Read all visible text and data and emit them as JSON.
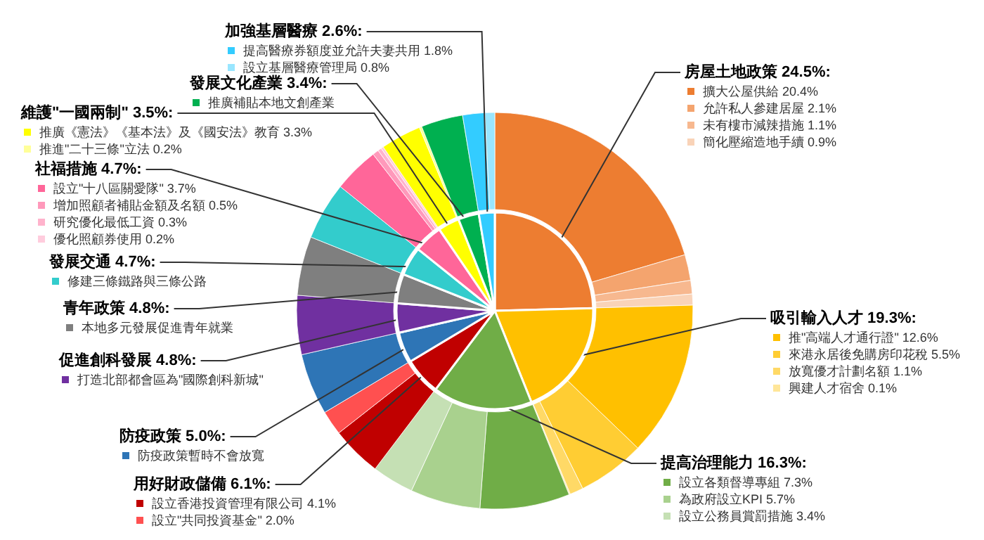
{
  "chart_data": [
    {
      "type": "pie",
      "categories": [
        "房屋土地政策",
        "吸引輸入人才",
        "提高治理能力",
        "用好財政儲備",
        "防疫政策",
        "促進創科發展",
        "青年政策",
        "發展交通",
        "社福措施",
        "維護\"一國兩制\"",
        "發展文化產業",
        "加強基層醫療"
      ],
      "values": [
        24.5,
        19.3,
        16.3,
        6.1,
        5.0,
        4.8,
        4.8,
        4.7,
        4.7,
        3.5,
        3.4,
        2.6
      ],
      "colors": [
        "#ed7d31",
        "#ffc000",
        "#70ad47",
        "#c00000",
        "#2e75b6",
        "#7030a0",
        "#7f7f7f",
        "#33cccc",
        "#ff6699",
        "#ffff00",
        "#00b050",
        "#33ccff"
      ],
      "value_labels": [
        "24.5%:",
        "19.3%:",
        "16.3%:",
        "6.1%:",
        "5.0%:",
        "4.8%:",
        "4.8%:",
        "4.7%:",
        "4.7%:",
        "3.5%:",
        "3.4%:",
        "2.6%:"
      ]
    },
    {
      "type": "donut",
      "categories": [
        "擴大公屋供給",
        "允許私人參建居屋",
        "未有樓市減辣措施",
        "簡化壓縮造地手續",
        "推\"高端人才通行證\"",
        "來港永居後免購房印花稅",
        "放寬優才計劃名額",
        "興建人才宿舍",
        "設立各類督導專組",
        "為政府設立KPI",
        "設立公務員賞罰措施",
        "設立香港投資管理有限公司",
        "設立\"共同投資基金\"",
        "防疫政策暫時不會放寬",
        "打造北部都會區為\"國際創科新城\"",
        "本地多元發展促進青年就業",
        "修建三條鐵路與三條公路",
        "設立\"十八區關愛隊\"",
        "增加照顧者補貼金額及名額",
        "研究優化最低工資",
        "優化照顧券使用",
        "推廣《憲法》《基本法》及《國安法》教育",
        "推進\"二十三條\"立法",
        "推廣補貼本地文創產業",
        "提高醫療券額度並允許夫妻共用",
        "設立基層醫療管理局"
      ],
      "values": [
        20.4,
        2.1,
        1.1,
        0.9,
        12.6,
        5.5,
        1.1,
        0.1,
        7.3,
        5.7,
        3.4,
        4.1,
        2.0,
        5.0,
        4.8,
        4.8,
        4.7,
        3.7,
        0.5,
        0.3,
        0.2,
        3.3,
        0.2,
        3.4,
        1.8,
        0.8
      ],
      "colors": [
        "#ed7d31",
        "#f4a46e",
        "#f7b88f",
        "#f9d3b8",
        "#ffc000",
        "#ffcd33",
        "#ffd966",
        "#ffe699",
        "#70ad47",
        "#a9d18e",
        "#c5e0b4",
        "#c00000",
        "#ff5050",
        "#2e75b6",
        "#7030a0",
        "#7f7f7f",
        "#33cccc",
        "#ff6699",
        "#ff99bb",
        "#ffb3cc",
        "#ffccdd",
        "#ffff00",
        "#ffff99",
        "#00b050",
        "#33ccff",
        "#99e6ff"
      ],
      "value_labels": [
        "20.4%",
        "2.1%",
        "1.1%",
        "0.9%",
        "12.6%",
        "5.5%",
        "1.1%",
        "0.1%",
        "7.3%",
        "5.7%",
        "3.4%",
        "4.1%",
        "2.0%",
        null,
        null,
        null,
        null,
        "3.7%",
        "0.5%",
        "0.3%",
        "0.2%",
        "3.3%",
        "0.2%",
        null,
        "1.8%",
        "0.8%"
      ],
      "legend": "left"
    }
  ]
}
